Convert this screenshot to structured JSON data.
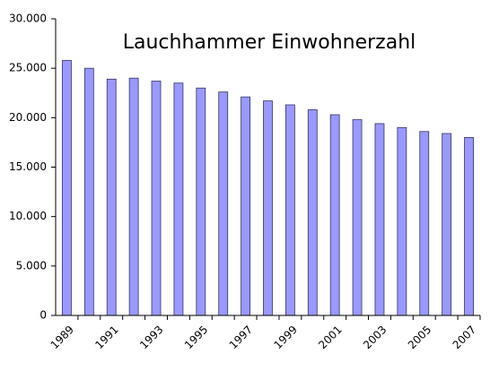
{
  "chart_data": {
    "type": "bar",
    "title": "Lauchhammer Einwohnerzahl",
    "categories": [
      "1989",
      null,
      "1991",
      null,
      "1993",
      null,
      "1995",
      null,
      "1997",
      null,
      "1999",
      null,
      "2001",
      null,
      "2003",
      null,
      "2005",
      null,
      "2007"
    ],
    "values": [
      25800,
      25000,
      23900,
      24000,
      23700,
      23500,
      23000,
      22600,
      22100,
      21700,
      21300,
      20800,
      20300,
      19800,
      19400,
      19000,
      18600,
      18400,
      18000
    ],
    "color": "#9999ff",
    "ylim": [
      0,
      30000
    ],
    "yticks": [
      0,
      {
        "value": 5000,
        "label": "5.000"
      },
      {
        "value": 10000,
        "label": "10.000"
      },
      {
        "value": 15000,
        "label": "15.000"
      },
      {
        "value": 20000,
        "label": "20.000"
      },
      {
        "value": 25000,
        "label": "25.000"
      },
      {
        "value": 30000,
        "label": "30.000"
      }
    ],
    "grid": false
  }
}
